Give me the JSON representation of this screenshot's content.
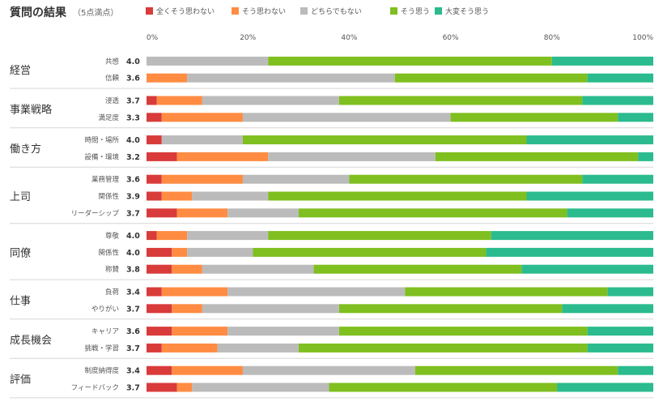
{
  "title": "質問の結果",
  "subtitle": "（5点満点）",
  "colors": [
    "#d93b3b",
    "#ff8c42",
    "#bbbbbb",
    "#7fbf1f",
    "#2bbb8e"
  ],
  "chart_data": {
    "type": "bar",
    "stacked": true,
    "orientation": "horizontal",
    "percent": true,
    "xlim": [
      0,
      100
    ],
    "xticks": [
      "0%",
      "20%",
      "40%",
      "60%",
      "80%",
      "100%"
    ],
    "legend": {
      "position": "top",
      "entries": [
        "全くそう思わない",
        "そう思わない",
        "どちらでもない",
        "そう思う",
        "大変そう思う"
      ]
    },
    "groups": [
      {
        "name": "経営",
        "items": [
          {
            "label": "共感",
            "score": "4.0",
            "values": [
              0,
              0,
              24,
              56,
              20
            ]
          },
          {
            "label": "信頼",
            "score": "3.6",
            "values": [
              0,
              8,
              41,
              38,
              13
            ]
          }
        ]
      },
      {
        "name": "事業戦略",
        "items": [
          {
            "label": "浸透",
            "score": "3.7",
            "values": [
              2,
              9,
              27,
              48,
              14
            ]
          },
          {
            "label": "満足度",
            "score": "3.3",
            "values": [
              3,
              16,
              41,
              33,
              7
            ]
          }
        ]
      },
      {
        "name": "働き方",
        "items": [
          {
            "label": "時間・場所",
            "score": "4.0",
            "values": [
              3,
              0,
              16,
              56,
              25
            ]
          },
          {
            "label": "設備・環境",
            "score": "3.2",
            "values": [
              6,
              18,
              33,
              40,
              3
            ]
          }
        ]
      },
      {
        "name": "上司",
        "items": [
          {
            "label": "業務管理",
            "score": "3.6",
            "values": [
              3,
              16,
              21,
              46,
              14
            ]
          },
          {
            "label": "関係性",
            "score": "3.9",
            "values": [
              3,
              6,
              15,
              51,
              25
            ]
          },
          {
            "label": "リーダーシップ",
            "score": "3.7",
            "values": [
              6,
              10,
              14,
              53,
              17
            ]
          }
        ]
      },
      {
        "name": "同僚",
        "items": [
          {
            "label": "尊敬",
            "score": "4.0",
            "values": [
              2,
              6,
              16,
              44,
              32
            ]
          },
          {
            "label": "関係性",
            "score": "4.0",
            "values": [
              5,
              3,
              13,
              46,
              33
            ]
          },
          {
            "label": "称賛",
            "score": "3.8",
            "values": [
              5,
              6,
              22,
              41,
              26
            ]
          }
        ]
      },
      {
        "name": "仕事",
        "items": [
          {
            "label": "負荷",
            "score": "3.4",
            "values": [
              3,
              13,
              35,
              40,
              9
            ]
          },
          {
            "label": "やりがい",
            "score": "3.7",
            "values": [
              5,
              6,
              27,
              44,
              18
            ]
          }
        ]
      },
      {
        "name": "成長機会",
        "items": [
          {
            "label": "キャリア",
            "score": "3.6",
            "values": [
              5,
              11,
              22,
              49,
              13
            ]
          },
          {
            "label": "挑戦・学習",
            "score": "3.7",
            "values": [
              3,
              11,
              16,
              57,
              13
            ]
          }
        ]
      },
      {
        "name": "評価",
        "items": [
          {
            "label": "制度納得度",
            "score": "3.4",
            "values": [
              5,
              14,
              34,
              40,
              7
            ]
          },
          {
            "label": "フィードバック",
            "score": "3.7",
            "values": [
              6,
              3,
              27,
              45,
              19
            ]
          }
        ]
      }
    ]
  }
}
